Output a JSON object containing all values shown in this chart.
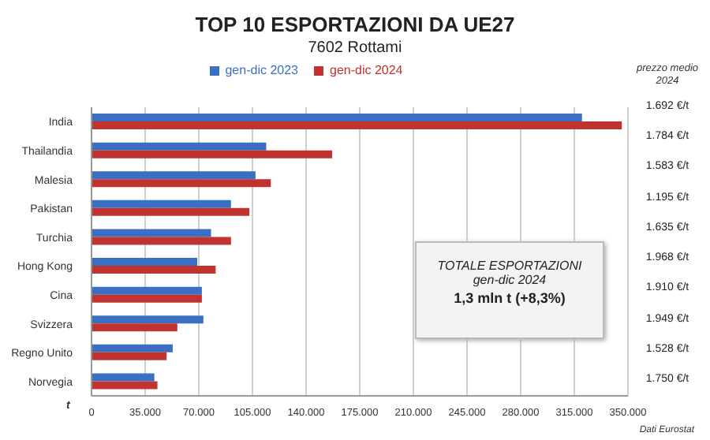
{
  "chart_data": {
    "type": "bar",
    "orientation": "horizontal",
    "title": "TOP 10 ESPORTAZIONI DA UE27",
    "subtitle": "7602 Rottami",
    "xlabel": "t",
    "categories": [
      "India",
      "Thailandia",
      "Malesia",
      "Pakistan",
      "Turchia",
      "Hong Kong",
      "Cina",
      "Svizzera",
      "Regno Unito",
      "Norvegia"
    ],
    "series": [
      {
        "name": "gen-dic 2023",
        "color": "#3a6fc4",
        "values": [
          320000,
          114000,
          107000,
          91000,
          78000,
          69000,
          72000,
          73000,
          53000,
          41000
        ]
      },
      {
        "name": "gen-dic 2024",
        "color": "#c0332f",
        "values": [
          346000,
          157000,
          117000,
          103000,
          91000,
          81000,
          72000,
          56000,
          49000,
          43000
        ]
      }
    ],
    "xlim": [
      0,
      350000
    ],
    "xticks": [
      {
        "value": 0,
        "label": "0"
      },
      {
        "value": 35000,
        "label": "35.000"
      },
      {
        "value": 70000,
        "label": "70.000"
      },
      {
        "value": 105000,
        "label": "105.000"
      },
      {
        "value": 140000,
        "label": "140.000"
      },
      {
        "value": 175000,
        "label": "175.000"
      },
      {
        "value": 210000,
        "label": "210.000"
      },
      {
        "value": 245000,
        "label": "245.000"
      },
      {
        "value": 280000,
        "label": "280.000"
      },
      {
        "value": 315000,
        "label": "315.000"
      },
      {
        "value": 350000,
        "label": "350.000"
      }
    ],
    "grid": "x",
    "legend": "top",
    "annotations": [
      "prezzo medio 2024",
      "1.692 €/t",
      "1.784 €/t",
      "1.583 €/t",
      "1.195 €/t",
      "1.635 €/t",
      "1.968 €/t",
      "1.910 €/t",
      "1.949 €/t",
      "1.528 €/t",
      "1.750 €/t",
      "TOTALE ESPORTAZIONI",
      "gen-dic 2024",
      "1,3 mln t (+8,3%)",
      "Dati Eurostat"
    ]
  }
}
